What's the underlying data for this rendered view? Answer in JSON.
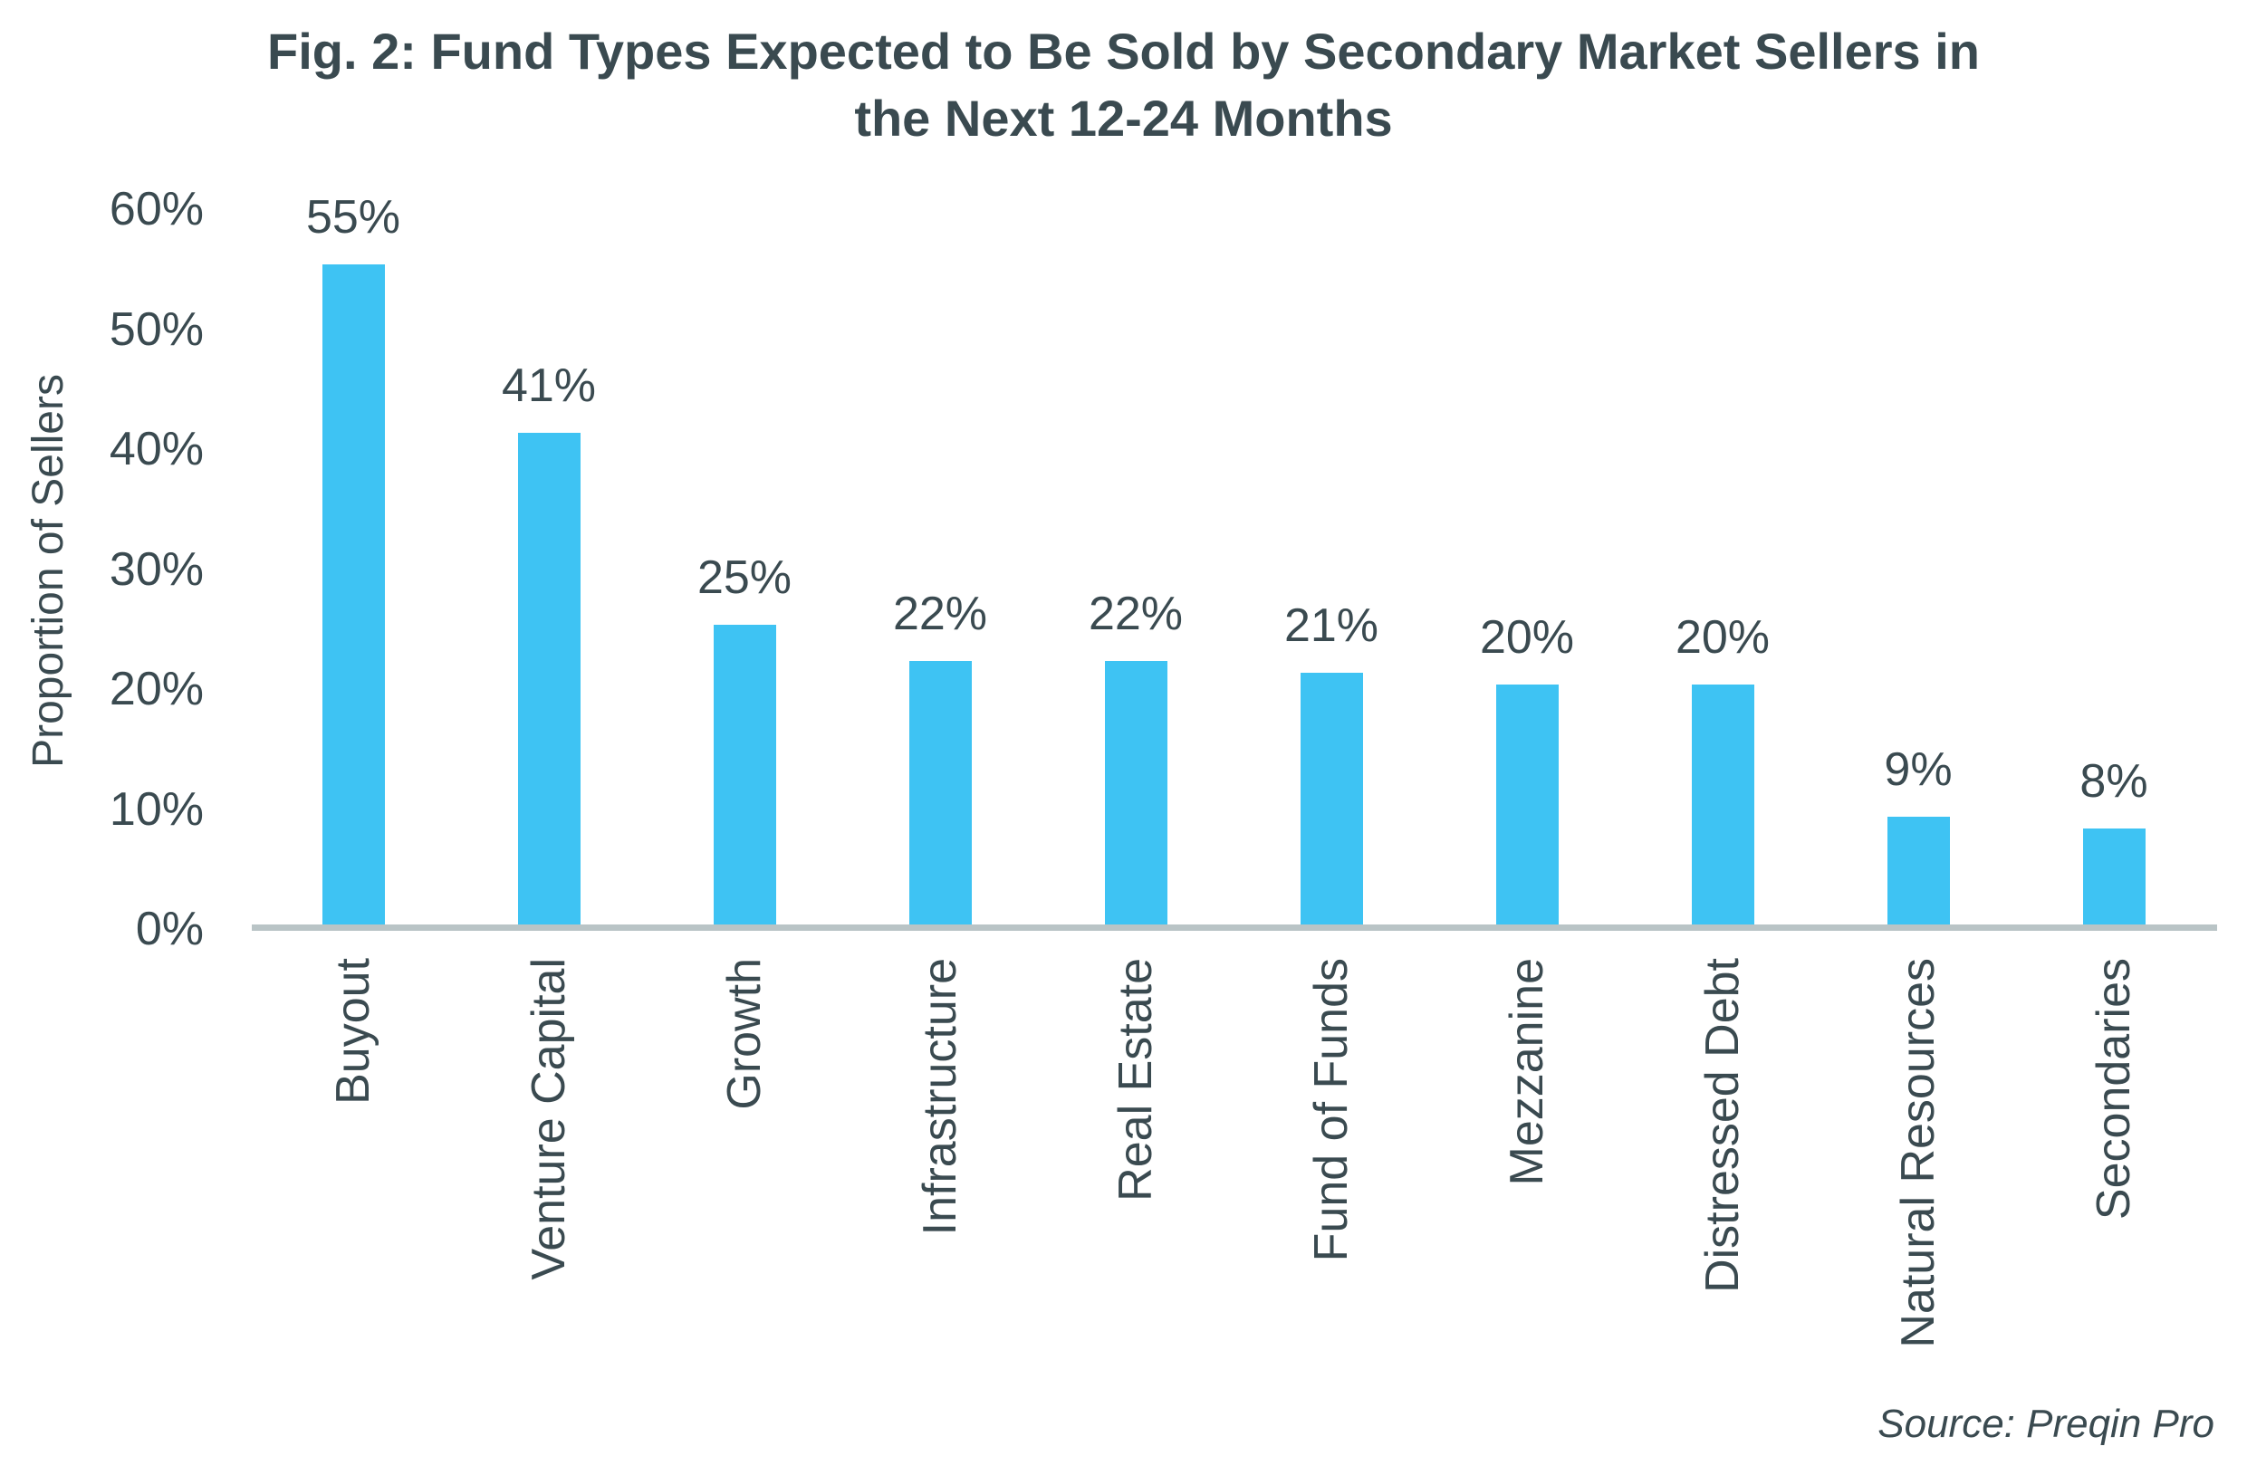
{
  "title": {
    "line1": "Fig. 2: Fund Types Expected to Be Sold by Secondary Market Sellers in",
    "line2": "the Next 12-24 Months"
  },
  "source": "Source: Preqin Pro",
  "colors": {
    "bar": "#3EC3F3",
    "text": "#3A4A50",
    "axis_line": "#B9C4C6"
  },
  "chart_data": {
    "type": "bar",
    "title": "Fig. 2: Fund Types Expected to Be Sold by Secondary Market Sellers in the Next 12-24 Months",
    "categories": [
      "Buyout",
      "Venture Capital",
      "Growth",
      "Infrastructure",
      "Real Estate",
      "Fund of Funds",
      "Mezzanine",
      "Distressed Debt",
      "Natural Resources",
      "Secondaries"
    ],
    "values": [
      55,
      41,
      25,
      22,
      22,
      21,
      20,
      20,
      9,
      8
    ],
    "value_labels": [
      "55%",
      "41%",
      "25%",
      "22%",
      "22%",
      "21%",
      "20%",
      "20%",
      "9%",
      "8%"
    ],
    "xlabel": "",
    "ylabel": "Proportion of Sellers",
    "ylim": [
      0,
      60
    ],
    "yticks": [
      {
        "value": 60,
        "label": "60%"
      },
      {
        "value": 50,
        "label": "50%"
      },
      {
        "value": 40,
        "label": "40%"
      },
      {
        "value": 30,
        "label": "30%"
      },
      {
        "value": 20,
        "label": "20%"
      },
      {
        "value": 10,
        "label": "10%"
      },
      {
        "value": 0,
        "label": "0%"
      }
    ],
    "grid": false,
    "legend": "none",
    "bar_color": "#3EC3F3",
    "source": "Source: Preqin Pro"
  }
}
